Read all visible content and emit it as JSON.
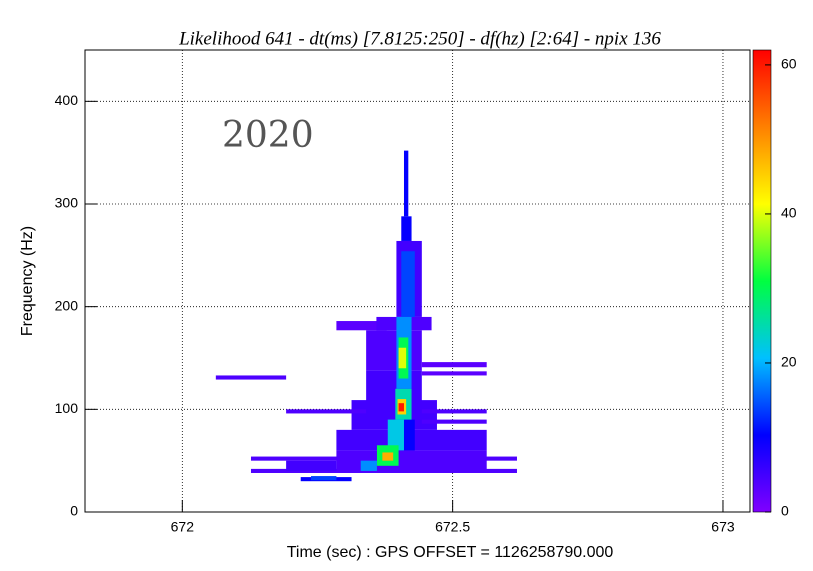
{
  "chart_data": {
    "type": "heatmap",
    "title": "Likelihood 641 - dt(ms) [7.8125:250] - df(hz) [2:64] - npix 136",
    "annotation": "2020",
    "x_label": "Time (sec) : GPS OFFSET = 1126258790.000",
    "y_label": "Frequency (Hz)",
    "xlim": [
      671.82,
      673.05
    ],
    "xticks": [
      672,
      672.5,
      673
    ],
    "ylim": [
      0,
      450
    ],
    "yticks": [
      0,
      100,
      200,
      300,
      400
    ],
    "clim": [
      0,
      62
    ],
    "cticks": [
      0,
      20,
      40,
      60
    ],
    "grid": true,
    "colorscale": [
      "#8000ff",
      "#0000ff",
      "#00c0ff",
      "#00ff40",
      "#ffff00",
      "#ff8000",
      "#ff0000"
    ],
    "pixels": [
      [
        672.285,
        672.378,
        177,
        186,
        3
      ],
      [
        672.359,
        672.461,
        177,
        190,
        4
      ],
      [
        672.34,
        672.443,
        138,
        177,
        4
      ],
      [
        672.34,
        672.443,
        99,
        138,
        5
      ],
      [
        672.313,
        672.471,
        80,
        109,
        5
      ],
      [
        672.285,
        672.563,
        60,
        80,
        5
      ],
      [
        672.285,
        672.563,
        41,
        60,
        4
      ],
      [
        672.443,
        672.563,
        141,
        146,
        3
      ],
      [
        672.443,
        672.563,
        133,
        137,
        3
      ],
      [
        672.062,
        672.192,
        129,
        133,
        4
      ],
      [
        672.192,
        672.34,
        96,
        100,
        4
      ],
      [
        672.443,
        672.563,
        96,
        100,
        4
      ],
      [
        672.443,
        672.563,
        86,
        90,
        4
      ],
      [
        672.127,
        672.619,
        50,
        54,
        4
      ],
      [
        672.127,
        672.619,
        38,
        42,
        4
      ],
      [
        672.192,
        672.285,
        40,
        50,
        5
      ],
      [
        672.219,
        672.313,
        30,
        34,
        10
      ],
      [
        672.238,
        672.285,
        31,
        35,
        14
      ],
      [
        672.396,
        672.443,
        190,
        264,
        5
      ],
      [
        672.405,
        672.43,
        190,
        254,
        14
      ],
      [
        672.405,
        672.424,
        264,
        288,
        10
      ],
      [
        672.41,
        672.418,
        288,
        352,
        10
      ],
      [
        672.396,
        672.424,
        120,
        190,
        18
      ],
      [
        672.4,
        672.418,
        130,
        170,
        30
      ],
      [
        672.4,
        672.414,
        140,
        160,
        40
      ],
      [
        672.396,
        672.43,
        60,
        90,
        10
      ],
      [
        672.394,
        672.424,
        90,
        120,
        25
      ],
      [
        672.398,
        672.414,
        95,
        110,
        45
      ],
      [
        672.4,
        672.41,
        98,
        106,
        60
      ],
      [
        672.38,
        672.41,
        60,
        90,
        22
      ],
      [
        672.36,
        672.4,
        45,
        65,
        30
      ],
      [
        672.37,
        672.39,
        50,
        58,
        48
      ],
      [
        672.33,
        672.36,
        40,
        50,
        18
      ]
    ]
  }
}
